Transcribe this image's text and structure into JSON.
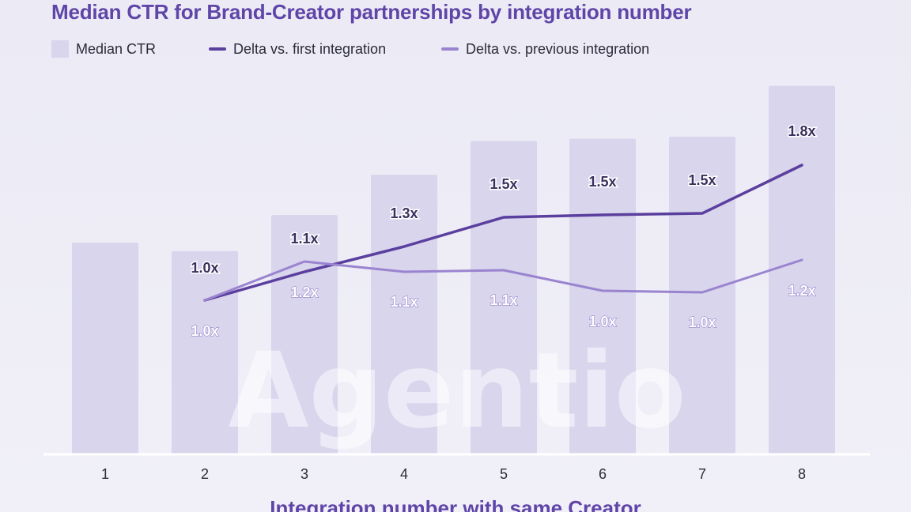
{
  "chart_data": {
    "type": "bar",
    "title": "Median CTR for Brand-Creator partnerships by integration number",
    "xlabel": "Integration number with same Creator",
    "ylabel": "",
    "categories": [
      "1",
      "2",
      "3",
      "4",
      "5",
      "6",
      "7",
      "8"
    ],
    "grid": false,
    "legend_position": "top-left",
    "watermark": "Agentio",
    "series": [
      {
        "name": "Median CTR",
        "kind": "bar",
        "color": "#d8d5ec",
        "values": [
          1.0,
          0.96,
          1.13,
          1.32,
          1.48,
          1.49,
          1.5,
          1.74
        ]
      },
      {
        "name": "Delta vs. first integration",
        "kind": "line",
        "color": "#5b3f9e",
        "values": [
          null,
          1.0,
          1.1,
          1.3,
          1.5,
          1.5,
          1.5,
          1.8
        ],
        "labels": [
          null,
          "1.0x",
          "1.1x",
          "1.3x",
          "1.5x",
          "1.5x",
          "1.5x",
          "1.8x"
        ]
      },
      {
        "name": "Delta vs. previous integration",
        "kind": "line",
        "color": "#9a84d0",
        "values": [
          null,
          1.0,
          1.2,
          1.1,
          1.1,
          1.0,
          1.0,
          1.2
        ],
        "labels": [
          null,
          "1.0x",
          "1.2x",
          "1.1x",
          "1.1x",
          "1.0x",
          "1.0x",
          "1.2x"
        ]
      }
    ]
  }
}
